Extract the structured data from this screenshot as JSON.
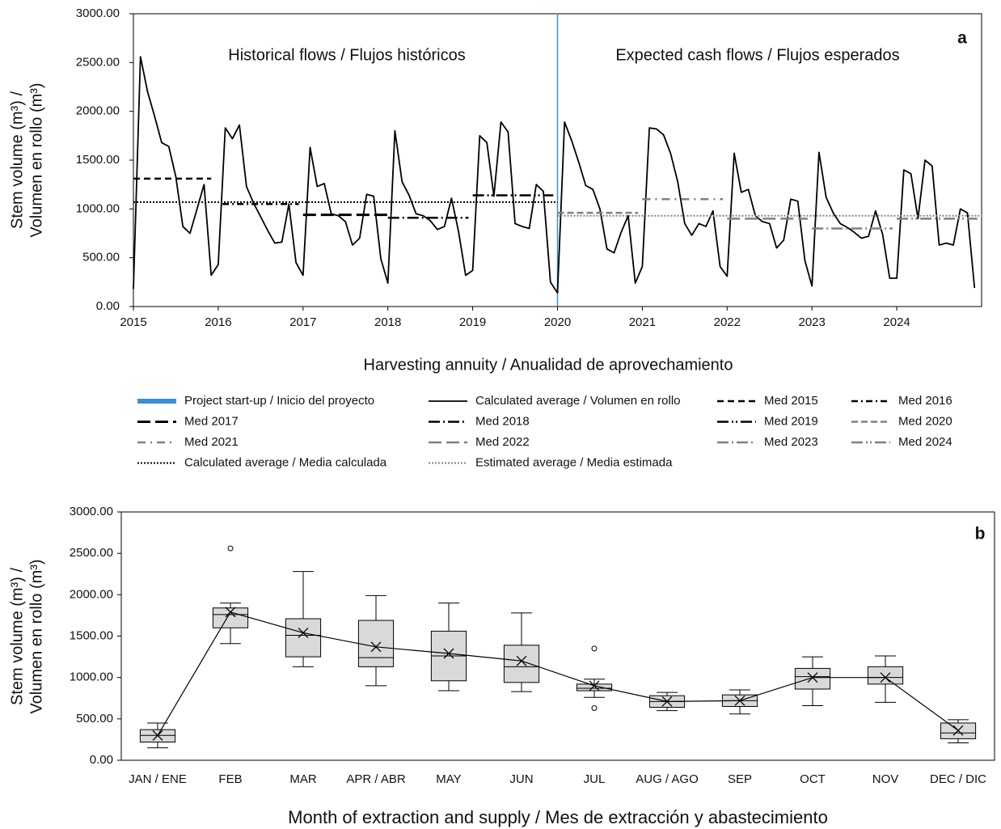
{
  "chart_data": [
    {
      "type": "line",
      "panel_label": "a",
      "annotations": [
        "Historical flows / Flujos históricos",
        "Expected cash flows / Flujos esperados"
      ],
      "x_label": "Harvesting annuity / Anualidad de aprovechamiento",
      "y_label": [
        "Stem volume (m³) /",
        "Volumen en rollo (m³)"
      ],
      "xlim": [
        2015,
        2025
      ],
      "xticks": [
        2015,
        2016,
        2017,
        2018,
        2019,
        2020,
        2021,
        2022,
        2023,
        2024
      ],
      "ylim": [
        0,
        3000
      ],
      "yticks": [
        {
          "value": 0,
          "label": "0.00"
        },
        {
          "value": 500,
          "label": "500.00"
        },
        {
          "value": 1000,
          "label": "1000.00"
        },
        {
          "value": 1500,
          "label": "1500.00"
        },
        {
          "value": 2000,
          "label": "2000.00"
        },
        {
          "value": 2500,
          "label": "2500.00"
        },
        {
          "value": 3000,
          "label": "3000.00"
        }
      ],
      "vline": {
        "name": "Project start-up / Inicio del proyecto",
        "color": "#3a8fd6",
        "x": 2020
      },
      "series": [
        {
          "name": "Calculated average / Volumen en rollo",
          "color": "#000000",
          "dash": "none",
          "width": 1.8,
          "x": [
            2015,
            2015.083,
            2015.167,
            2015.25,
            2015.333,
            2015.417,
            2015.5,
            2015.583,
            2015.667,
            2015.75,
            2015.833,
            2015.917,
            2016,
            2016.083,
            2016.167,
            2016.25,
            2016.333,
            2016.417,
            2016.5,
            2016.583,
            2016.667,
            2016.75,
            2016.833,
            2016.917,
            2017,
            2017.083,
            2017.167,
            2017.25,
            2017.333,
            2017.417,
            2017.5,
            2017.583,
            2017.667,
            2017.75,
            2017.833,
            2017.917,
            2018,
            2018.083,
            2018.167,
            2018.25,
            2018.333,
            2018.417,
            2018.5,
            2018.583,
            2018.667,
            2018.75,
            2018.833,
            2018.917,
            2019,
            2019.083,
            2019.167,
            2019.25,
            2019.333,
            2019.417,
            2019.5,
            2019.583,
            2019.667,
            2019.75,
            2019.833,
            2019.917,
            2020,
            2020.083,
            2020.167,
            2020.25,
            2020.333,
            2020.417,
            2020.5,
            2020.583,
            2020.667,
            2020.75,
            2020.833,
            2020.917,
            2021,
            2021.083,
            2021.167,
            2021.25,
            2021.333,
            2021.417,
            2021.5,
            2021.583,
            2021.667,
            2021.75,
            2021.833,
            2021.917,
            2022,
            2022.083,
            2022.167,
            2022.25,
            2022.333,
            2022.417,
            2022.5,
            2022.583,
            2022.667,
            2022.75,
            2022.833,
            2022.917,
            2023,
            2023.083,
            2023.167,
            2023.25,
            2023.333,
            2023.417,
            2023.5,
            2023.583,
            2023.667,
            2023.75,
            2023.833,
            2023.917,
            2024,
            2024.083,
            2024.167,
            2024.25,
            2024.333,
            2024.417,
            2024.5,
            2024.583,
            2024.667,
            2024.75,
            2024.833,
            2024.917
          ],
          "values": [
            180,
            2560,
            2200,
            1950,
            1680,
            1640,
            1330,
            820,
            750,
            1000,
            1250,
            320,
            430,
            1830,
            1720,
            1860,
            1230,
            1060,
            920,
            780,
            650,
            660,
            1050,
            450,
            320,
            1630,
            1230,
            1260,
            950,
            930,
            870,
            630,
            700,
            1150,
            1130,
            490,
            240,
            1800,
            1280,
            1140,
            950,
            930,
            880,
            790,
            820,
            1110,
            770,
            320,
            370,
            1750,
            1680,
            1130,
            1890,
            1790,
            850,
            820,
            800,
            1250,
            1180,
            250,
            140,
            1890,
            1700,
            1480,
            1240,
            1200,
            1000,
            590,
            550,
            760,
            930,
            240,
            410,
            1830,
            1820,
            1760,
            1570,
            1280,
            850,
            730,
            850,
            820,
            980,
            410,
            310,
            1570,
            1170,
            1200,
            930,
            870,
            850,
            600,
            680,
            1100,
            1080,
            470,
            210,
            1580,
            1120,
            960,
            850,
            810,
            760,
            700,
            720,
            980,
            740,
            290,
            290,
            1400,
            1360,
            900,
            1500,
            1440,
            630,
            650,
            630,
            1000,
            960,
            190
          ]
        },
        {
          "name": "Med 2015",
          "color": "#000000",
          "dash": "8,5",
          "width": 2.5,
          "x": [
            2015,
            2015.917
          ],
          "values": [
            1310,
            1310
          ]
        },
        {
          "name": "Med 2016",
          "color": "#000000",
          "dash": "8,4,2,4",
          "width": 2.5,
          "x": [
            2016.05,
            2016.95
          ],
          "values": [
            1050,
            1050
          ]
        },
        {
          "name": "Med 2017",
          "color": "#000000",
          "dash": "16,6",
          "width": 3,
          "x": [
            2017,
            2018
          ],
          "values": [
            940,
            940
          ]
        },
        {
          "name": "Med 2018",
          "color": "#000000",
          "dash": "14,4,2,4",
          "width": 2.5,
          "x": [
            2018,
            2018.95
          ],
          "values": [
            910,
            910
          ]
        },
        {
          "name": "Med 2019",
          "color": "#000000",
          "dash": "14,4,2,3,2,4",
          "width": 2.5,
          "x": [
            2019,
            2019.95
          ],
          "values": [
            1140,
            1140
          ]
        },
        {
          "name": "Med 2020",
          "color": "#808080",
          "dash": "8,4",
          "width": 2.5,
          "x": [
            2020,
            2020.95
          ],
          "values": [
            960,
            960
          ]
        },
        {
          "name": "Med 2021",
          "color": "#808080",
          "dash": "10,6,2,6",
          "width": 2.5,
          "x": [
            2021,
            2021.95
          ],
          "values": [
            1100,
            1100
          ]
        },
        {
          "name": "Med 2022",
          "color": "#808080",
          "dash": "16,6",
          "width": 2.5,
          "x": [
            2022,
            2022.95
          ],
          "values": [
            900,
            900
          ]
        },
        {
          "name": "Med 2023",
          "color": "#808080",
          "dash": "14,4,2,4",
          "width": 2.5,
          "x": [
            2023,
            2023.95
          ],
          "values": [
            800,
            800
          ]
        },
        {
          "name": "Med 2024",
          "color": "#808080",
          "dash": "14,4,2,3,2,4",
          "width": 2.5,
          "x": [
            2024,
            2024.95
          ],
          "values": [
            900,
            900
          ]
        },
        {
          "name": "Calculated average / Media calculada",
          "color": "#000000",
          "dash": "2,2",
          "width": 2,
          "x": [
            2015,
            2020
          ],
          "values": [
            1070,
            1070
          ]
        },
        {
          "name": "Estimated average / Media estimada",
          "color": "#808080",
          "dash": "2,2",
          "width": 2,
          "x": [
            2020,
            2025
          ],
          "values": [
            930,
            930
          ]
        }
      ]
    },
    {
      "type": "box",
      "panel_label": "b",
      "x_label": "Month of extraction and supply / Mes de extracción y abastecimiento",
      "y_label": [
        "Stem volume (m³) /",
        "Volumen en rollo (m³)"
      ],
      "color": "#d9d9d9",
      "ylim": [
        0,
        3000
      ],
      "yticks": [
        {
          "value": 0,
          "label": "0.00"
        },
        {
          "value": 500,
          "label": "500.00"
        },
        {
          "value": 1000,
          "label": "1000.00"
        },
        {
          "value": 1500,
          "label": "1500.00"
        },
        {
          "value": 2000,
          "label": "2000.00"
        },
        {
          "value": 2500,
          "label": "2500.00"
        },
        {
          "value": 3000,
          "label": "3000.00"
        }
      ],
      "categories": [
        "JAN / ENE",
        "FEB",
        "MAR",
        "APR / ABR",
        "MAY",
        "JUN",
        "JUL",
        "AUG / AGO",
        "SEP",
        "OCT",
        "NOV",
        "DEC / DIC"
      ],
      "boxes": [
        {
          "min": 150,
          "q1": 220,
          "median": 300,
          "q3": 370,
          "max": 450,
          "mean": 300,
          "outliers": []
        },
        {
          "min": 1410,
          "q1": 1600,
          "median": 1760,
          "q3": 1840,
          "max": 1900,
          "mean": 1790,
          "outliers": [
            2560
          ]
        },
        {
          "min": 1130,
          "q1": 1250,
          "median": 1510,
          "q3": 1710,
          "max": 2280,
          "mean": 1540,
          "outliers": []
        },
        {
          "min": 900,
          "q1": 1130,
          "median": 1240,
          "q3": 1690,
          "max": 1990,
          "mean": 1370,
          "outliers": []
        },
        {
          "min": 840,
          "q1": 960,
          "median": 1260,
          "q3": 1560,
          "max": 1900,
          "mean": 1290,
          "outliers": []
        },
        {
          "min": 830,
          "q1": 940,
          "median": 1130,
          "q3": 1390,
          "max": 1780,
          "mean": 1200,
          "outliers": []
        },
        {
          "min": 760,
          "q1": 840,
          "median": 870,
          "q3": 920,
          "max": 980,
          "mean": 900,
          "outliers": [
            1350,
            630
          ]
        },
        {
          "min": 600,
          "q1": 640,
          "median": 710,
          "q3": 780,
          "max": 820,
          "mean": 710,
          "outliers": []
        },
        {
          "min": 560,
          "q1": 650,
          "median": 720,
          "q3": 790,
          "max": 850,
          "mean": 720,
          "outliers": []
        },
        {
          "min": 660,
          "q1": 860,
          "median": 1010,
          "q3": 1110,
          "max": 1250,
          "mean": 1000,
          "outliers": []
        },
        {
          "min": 700,
          "q1": 920,
          "median": 1000,
          "q3": 1130,
          "max": 1260,
          "mean": 1000,
          "outliers": []
        },
        {
          "min": 210,
          "q1": 260,
          "median": 330,
          "q3": 450,
          "max": 490,
          "mean": 360,
          "outliers": []
        }
      ]
    }
  ]
}
